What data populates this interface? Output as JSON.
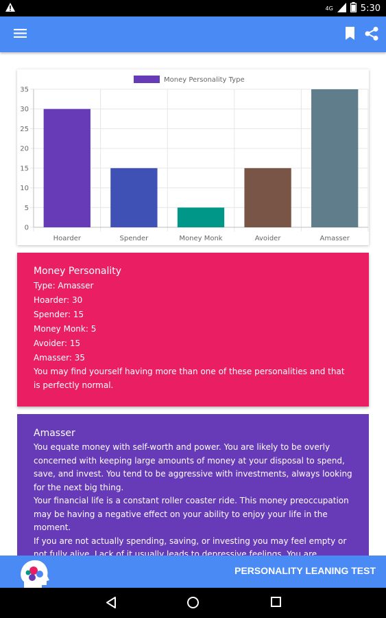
{
  "status": {
    "network": "4G",
    "time": "5:30"
  },
  "chart_data": {
    "type": "bar",
    "categories": [
      "Hoarder",
      "Spender",
      "Money Monk",
      "Avoider",
      "Amasser"
    ],
    "values": [
      30,
      15,
      5,
      15,
      35
    ],
    "colors": [
      "#673ab7",
      "#3f51b5",
      "#009688",
      "#795548",
      "#607d8b"
    ],
    "legend": "Money Personality Type",
    "legend_color": "#673ab7",
    "ylim": [
      0,
      35
    ],
    "yticks": [
      0,
      5,
      10,
      15,
      20,
      25,
      30,
      35
    ],
    "grid": true,
    "legend_position": "top"
  },
  "summary": {
    "title": "Money Personality",
    "lines": [
      "Type: Amasser",
      "Hoarder: 30",
      "Spender: 15",
      "Money Monk: 5",
      "Avoider: 15",
      "Amasser: 35",
      "You may find yourself having more than one of these personalities and that is perfectly normal."
    ]
  },
  "detail": {
    "title": "Amasser",
    "paragraphs": [
      "You equate money with self-worth and power. You are likely to be overly concerned with keeping large amounts of money at your disposal to spend, save, and invest. You tend to be aggressive with investments, always looking for the next big thing.",
      "Your financial life is a constant roller coaster ride. This money preoccupation may be having a negative effect on your ability to enjoy your life in the moment.",
      "If you are not actually spending, saving, or investing you may feel empty or not fully alive. Lack of it usually leads to depressive feelings. You are happiest when you have money. You make investments with high rate of return."
    ]
  },
  "banner": {
    "text": "PERSONALITY LEANING TEST"
  },
  "colors": {
    "appbar": "#4a8af4",
    "pink": "#e91e63",
    "purple": "#673ab7"
  }
}
